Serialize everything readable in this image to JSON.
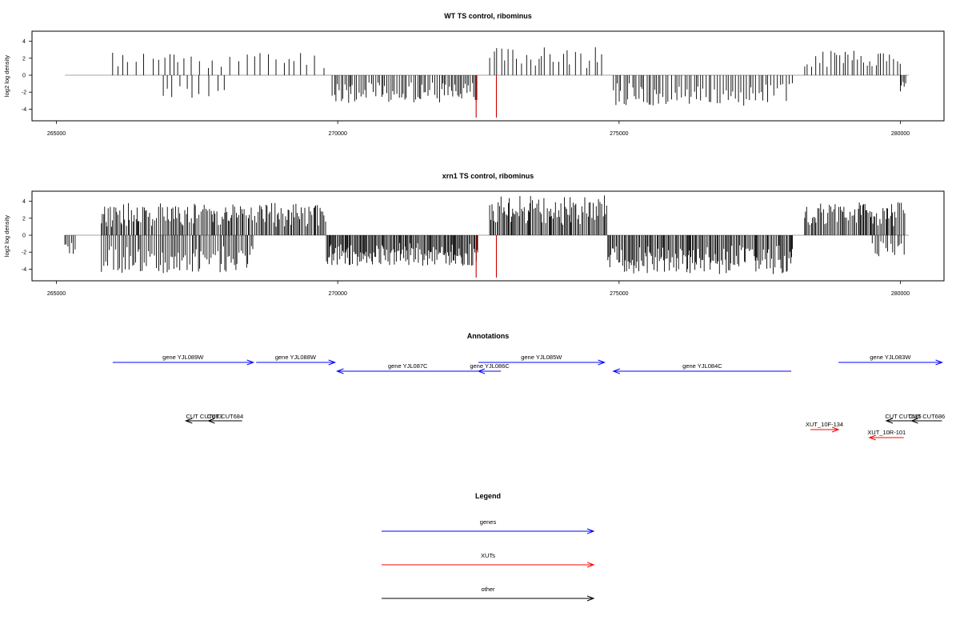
{
  "figure": {
    "annotations_title": "Annotations",
    "legend_title": "Legend"
  },
  "chart_data": [
    {
      "type": "bar",
      "title": "WT TS control, ribominus",
      "xlabel": "",
      "ylabel": "log2 log density",
      "xlim": [
        265000,
        280000
      ],
      "ylim": [
        -5,
        5
      ],
      "xticks": [
        "265000",
        "270000",
        "275000",
        "280000"
      ],
      "yticks": [
        "4",
        "2",
        "0",
        "-2",
        "-4"
      ],
      "grid": false,
      "segments": [
        {
          "x0": 266000,
          "x1": 269800,
          "strand": "+",
          "density": 0.12,
          "max": 2.8,
          "seed": 11
        },
        {
          "x0": 266900,
          "x1": 268100,
          "strand": "-",
          "density": 0.12,
          "max": 2.9,
          "seed": 12
        },
        {
          "x0": 269900,
          "x1": 272500,
          "strand": "-",
          "density": 0.42,
          "max": 3.3,
          "seed": 13
        },
        {
          "x0": 272700,
          "x1": 274700,
          "strand": "+",
          "density": 0.2,
          "max": 3.3,
          "seed": 14
        },
        {
          "x0": 274900,
          "x1": 278100,
          "strand": "-",
          "density": 0.32,
          "max": 3.6,
          "seed": 15
        },
        {
          "x0": 278300,
          "x1": 280000,
          "strand": "+",
          "density": 0.26,
          "max": 2.9,
          "seed": 16
        },
        {
          "x0": 280000,
          "x1": 280100,
          "strand": "-",
          "density": 0.6,
          "max": 2.0,
          "seed": 17
        }
      ],
      "highlights": [
        {
          "x": 272460,
          "value": -5,
          "color": "#cc0000"
        },
        {
          "x": 272820,
          "value": -5,
          "color": "#cc0000"
        }
      ],
      "baseline": {
        "x0": 265150,
        "x1": 280150
      }
    },
    {
      "type": "bar",
      "title": "xrn1 TS control, ribominus",
      "xlabel": "",
      "ylabel": "log2 log density",
      "xlim": [
        265000,
        280000
      ],
      "ylim": [
        -5,
        5
      ],
      "xticks": [
        "265000",
        "270000",
        "275000",
        "280000"
      ],
      "yticks": [
        "4",
        "2",
        "0",
        "-2",
        "-4"
      ],
      "grid": false,
      "segments": [
        {
          "x0": 265150,
          "x1": 265350,
          "strand": "-",
          "density": 0.5,
          "max": 2.2,
          "seed": 21
        },
        {
          "x0": 265800,
          "x1": 269800,
          "strand": "+",
          "density": 0.55,
          "max": 3.8,
          "seed": 22
        },
        {
          "x0": 265800,
          "x1": 268500,
          "strand": "-",
          "density": 0.45,
          "max": 4.5,
          "seed": 23
        },
        {
          "x0": 269800,
          "x1": 272500,
          "strand": "-",
          "density": 0.75,
          "max": 3.6,
          "seed": 24
        },
        {
          "x0": 272700,
          "x1": 274800,
          "strand": "+",
          "density": 0.65,
          "max": 4.7,
          "seed": 25
        },
        {
          "x0": 274800,
          "x1": 278100,
          "strand": "-",
          "density": 0.65,
          "max": 4.6,
          "seed": 26
        },
        {
          "x0": 278300,
          "x1": 280100,
          "strand": "+",
          "density": 0.6,
          "max": 3.9,
          "seed": 27
        },
        {
          "x0": 279500,
          "x1": 280100,
          "strand": "-",
          "density": 0.35,
          "max": 2.5,
          "seed": 28
        }
      ],
      "highlights": [
        {
          "x": 272460,
          "value": -5,
          "color": "#cc0000"
        },
        {
          "x": 272820,
          "value": -5,
          "color": "#cc0000"
        }
      ],
      "baseline": {
        "x0": 265150,
        "x1": 280150
      }
    }
  ],
  "annotations": {
    "genes": [
      {
        "label": "gene YJL089W",
        "start": 266000,
        "end": 268500,
        "strand": "+"
      },
      {
        "label": "gene YJL088W",
        "start": 268550,
        "end": 269950,
        "strand": "+"
      },
      {
        "label": "gene YJL087C",
        "start": 269990,
        "end": 272500,
        "strand": "-"
      },
      {
        "label": "gene YJL086C",
        "start": 272500,
        "end": 272900,
        "strand": "-"
      },
      {
        "label": "gene YJL085W",
        "start": 272500,
        "end": 274740,
        "strand": "+"
      },
      {
        "label": "gene YJL084C",
        "start": 274900,
        "end": 278060,
        "strand": "-"
      },
      {
        "label": "gene YJL083W",
        "start": 278900,
        "end": 280740,
        "strand": "+"
      }
    ],
    "xuts": [
      {
        "label": "XUT_10F-134",
        "start": 278400,
        "end": 278900,
        "strand": "+"
      },
      {
        "label": "XUT_10R-101",
        "start": 279450,
        "end": 280060,
        "strand": "-"
      }
    ],
    "other": [
      {
        "label": "CUT CUT683",
        "start": 267300,
        "end": 267950,
        "strand": "-"
      },
      {
        "label": "CUT CUT684",
        "start": 267700,
        "end": 268300,
        "strand": "-"
      },
      {
        "label": "CUT CUT685",
        "start": 279750,
        "end": 280350,
        "strand": "-"
      },
      {
        "label": "CUT CUT686",
        "start": 280200,
        "end": 280740,
        "strand": "-"
      }
    ]
  },
  "legend": {
    "items": [
      {
        "label": "genes",
        "color": "#0000ff"
      },
      {
        "label": "XUTs",
        "color": "#ff0000"
      },
      {
        "label": "other",
        "color": "#000000"
      }
    ]
  },
  "colors": {
    "gene": "#0000ff",
    "xut": "#ff0000",
    "other": "#000000",
    "bar": "#000000",
    "baseline": "#888888"
  }
}
